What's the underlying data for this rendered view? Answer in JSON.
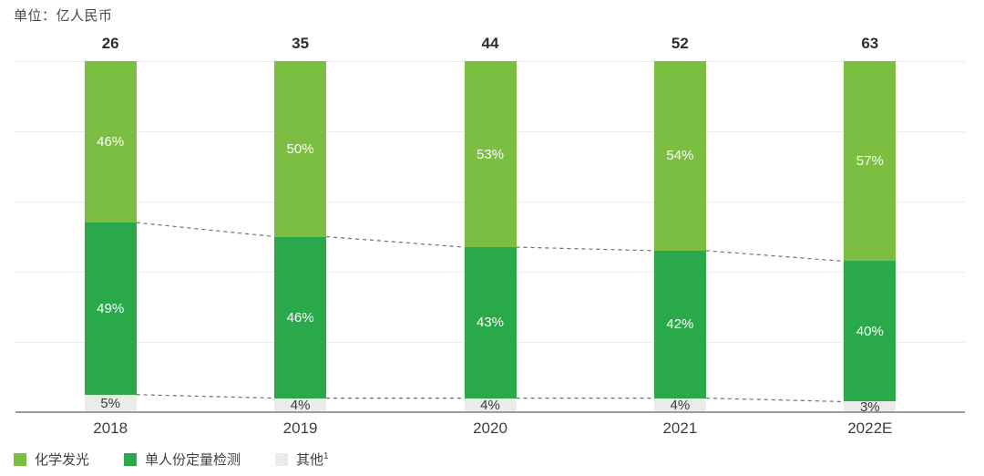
{
  "colors": {
    "light_green": "#7cbe41",
    "dark_green": "#29a94a",
    "gray": "#ebebe9",
    "grid": "#ececec",
    "axis": "#9c9c9c",
    "dashed": "#6f6f6f",
    "text_dark": "#3e3e3e",
    "total_text": "#2e2e2e",
    "label_on_green": "#ffffff",
    "label_on_gray": "#3b3b3b"
  },
  "chart_data": {
    "type": "bar",
    "variant": "stacked-100-percent",
    "unit_label": "单位：亿人民币",
    "categories": [
      "2018",
      "2019",
      "2020",
      "2021",
      "2022E"
    ],
    "totals": [
      26,
      35,
      44,
      52,
      63
    ],
    "value_suffix": "%",
    "series": [
      {
        "key": "chemiluminescence",
        "name": "化学发光",
        "color_key": "light_green",
        "label_style": "on-green",
        "values": [
          46,
          50,
          53,
          54,
          57
        ]
      },
      {
        "key": "single-person-quantitative-testing",
        "name": "单人份定量检测",
        "color_key": "dark_green",
        "label_style": "on-green",
        "values": [
          49,
          46,
          43,
          42,
          40
        ]
      },
      {
        "key": "others",
        "name": "其他",
        "color_key": "gray",
        "label_style": "on-gray",
        "values": [
          5,
          4,
          4,
          4,
          3
        ]
      }
    ],
    "ylim": [
      0,
      100
    ],
    "gridlines_percent": [
      100,
      80,
      60,
      40,
      20
    ],
    "grid_on": true,
    "connectors": [
      {
        "name": "top-of-dark-green-trend",
        "top_of_series": 1
      },
      {
        "name": "top-of-gray-trend",
        "top_of_series": 2
      }
    ],
    "legend_position": "bottom-left"
  },
  "legend": {
    "items": [
      {
        "label": "化学发光",
        "superscript": "",
        "color_key": "light_green"
      },
      {
        "label": "单人份定量检测",
        "superscript": "",
        "color_key": "dark_green"
      },
      {
        "label": "其他",
        "superscript": "1",
        "color_key": "gray"
      }
    ]
  }
}
